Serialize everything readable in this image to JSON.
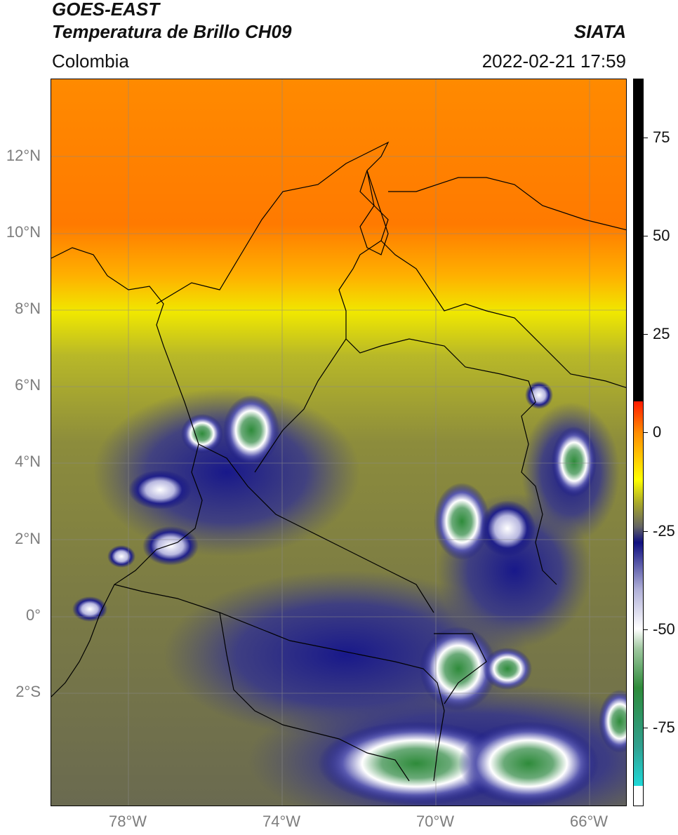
{
  "header": {
    "satellite": "GOES-EAST",
    "product": "Temperatura de Brillo CH09",
    "region": "Colombia",
    "agency": "SIATA",
    "datetime": "2022-02-21 17:59"
  },
  "map": {
    "lat_labels": [
      "12°N",
      "10°N",
      "8°N",
      "6°N",
      "4°N",
      "2°N",
      "0°",
      "2°S"
    ],
    "lon_labels": [
      "78°W",
      "74°W",
      "70°W",
      "66°W"
    ],
    "lat_range": [
      -5.0,
      14.0
    ],
    "lon_range": [
      -80.0,
      -65.0
    ],
    "gridlines": true
  },
  "colorbar": {
    "ticks": [
      "75",
      "50",
      "25",
      "0",
      "-25",
      "-50",
      "-75"
    ],
    "tick_values": [
      75,
      50,
      25,
      0,
      -25,
      -50,
      -75
    ],
    "range": [
      -95,
      90
    ],
    "units": "",
    "colors": {
      "black": "#000000",
      "red": "#ff1a00",
      "orange": "#ff8c00",
      "yellow": "#ffff00",
      "olive": "#a8a82a",
      "gray": "#646464",
      "navy": "#101080",
      "white": "#ffffff",
      "green": "#2e8b3a",
      "cyan": "#20d8d8"
    }
  }
}
